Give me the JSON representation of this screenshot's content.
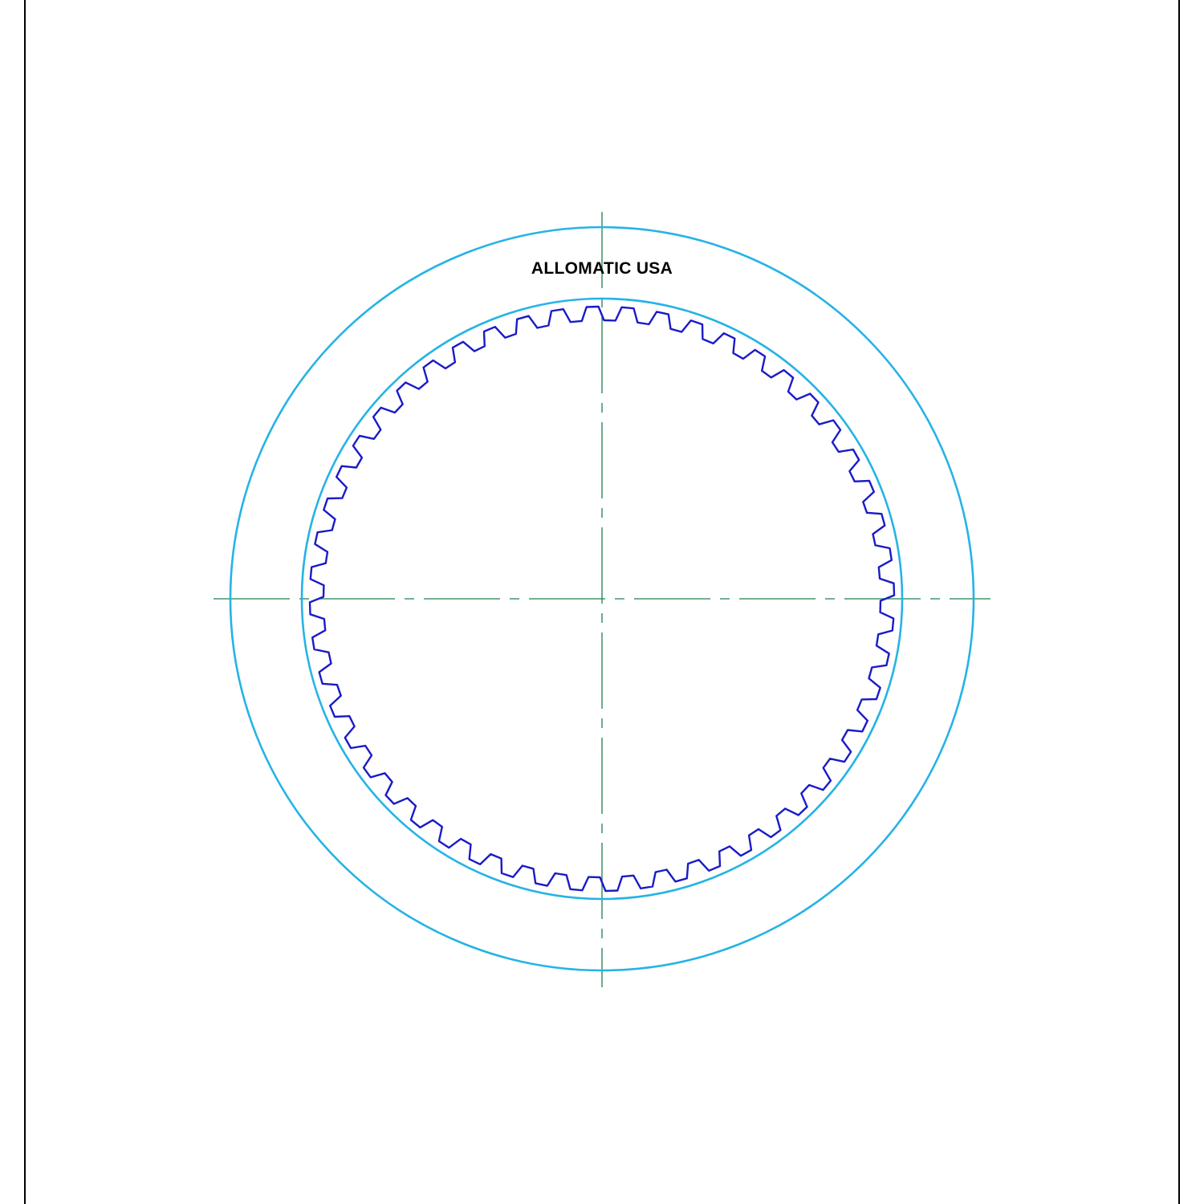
{
  "label": {
    "text": "ALLOMATIC USA"
  },
  "part": {
    "spline_tooth_count": 52
  },
  "colors": {
    "background": "#ffffff",
    "frame": "#000000",
    "outer_edge": "#25b3e6",
    "inner_edge": "#25b3e6",
    "spline": "#1a1ac8",
    "centerline": "#1f7f4a",
    "label": "#000000"
  }
}
